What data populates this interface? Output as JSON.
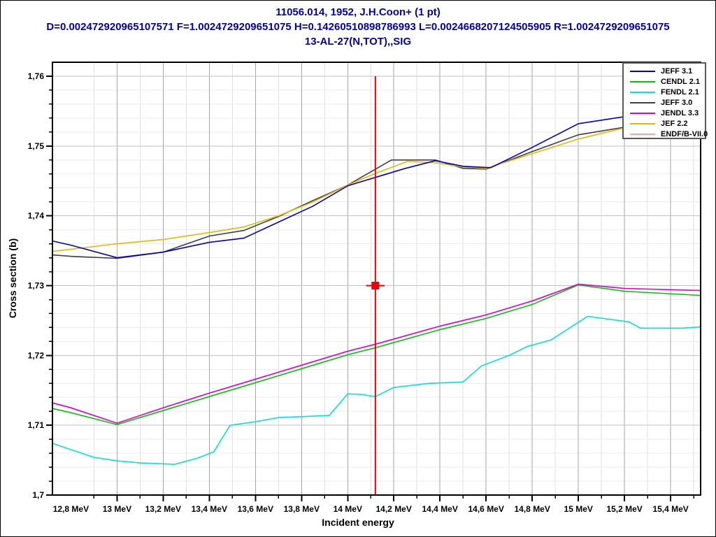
{
  "header": {
    "line1": "11056.014, 1952, J.H.Coon+ (1 pt)",
    "line2": "D=0.002472920965107571 F=1.0024729209651075 H=0.14260510898786993 L=0.0024668207124505905 R=1.0024729209651075",
    "line3": "13-AL-27(N,TOT),,SIG",
    "text_color": "#0000bb"
  },
  "colors": {
    "background": "#ffffff",
    "plot_border": "#000000",
    "grid_major_vertical": "#a6a6a6",
    "grid_major_horizontal": "#c2c2c2",
    "grid_minor_vertical": "#e2e2e2",
    "grid_minor_horizontal": "#ebebeb",
    "experimental": "#ee0000"
  },
  "chart_data": {
    "type": "line",
    "title": "13-AL-27(N,TOT),,SIG",
    "xlabel": "Incident energy",
    "ylabel": "Cross section (b)",
    "x_unit": "MeV",
    "y_unit": "b",
    "xlim": [
      12.72,
      15.53
    ],
    "ylim": [
      1.7,
      1.762
    ],
    "grid": "on",
    "legend_position": "top-right",
    "x_major_ticks": [
      {
        "value": 12.8,
        "label": "12,8 MeV"
      },
      {
        "value": 13.0,
        "label": "13 MeV"
      },
      {
        "value": 13.2,
        "label": "13,2 MeV"
      },
      {
        "value": 13.4,
        "label": "13,4 MeV"
      },
      {
        "value": 13.6,
        "label": "13,6 MeV"
      },
      {
        "value": 13.8,
        "label": "13,8 MeV"
      },
      {
        "value": 14.0,
        "label": "14 MeV"
      },
      {
        "value": 14.2,
        "label": "14,2 MeV"
      },
      {
        "value": 14.4,
        "label": "14,4 MeV"
      },
      {
        "value": 14.6,
        "label": "14,6 MeV"
      },
      {
        "value": 14.8,
        "label": "14,8 MeV"
      },
      {
        "value": 15.0,
        "label": "15 MeV"
      },
      {
        "value": 15.2,
        "label": "15,2 MeV"
      },
      {
        "value": 15.4,
        "label": "15,4 MeV"
      }
    ],
    "x_minor_step": 0.1,
    "y_major_ticks": [
      {
        "value": 1.76,
        "label": "1,76"
      },
      {
        "value": 1.75,
        "label": "1,75"
      },
      {
        "value": 1.74,
        "label": "1,74"
      },
      {
        "value": 1.73,
        "label": "1,73"
      },
      {
        "value": 1.72,
        "label": "1,72"
      },
      {
        "value": 1.71,
        "label": "1,71"
      },
      {
        "value": 1.7,
        "label": "1,7"
      }
    ],
    "y_minor_step": 0.002,
    "series": [
      {
        "name": "JEFF 3.1",
        "color": "#0000cc",
        "points": [
          [
            12.72,
            1.7364
          ],
          [
            12.8,
            1.7358
          ],
          [
            13.0,
            1.734
          ],
          [
            13.2,
            1.7348
          ],
          [
            13.4,
            1.7362
          ],
          [
            13.55,
            1.7368
          ],
          [
            13.7,
            1.7391
          ],
          [
            13.85,
            1.7414
          ],
          [
            14.0,
            1.7443
          ],
          [
            14.12,
            1.7455
          ],
          [
            14.25,
            1.7468
          ],
          [
            14.38,
            1.7479
          ],
          [
            14.5,
            1.7471
          ],
          [
            14.62,
            1.7469
          ],
          [
            14.8,
            1.7498
          ],
          [
            15.0,
            1.7532
          ],
          [
            15.2,
            1.7542
          ],
          [
            15.53,
            1.7556
          ]
        ]
      },
      {
        "name": "CENDL 2.1",
        "color": "#00c800",
        "points": [
          [
            12.72,
            1.7124
          ],
          [
            12.8,
            1.7118
          ],
          [
            13.0,
            1.7101
          ],
          [
            13.2,
            1.7121
          ],
          [
            13.4,
            1.7141
          ],
          [
            13.6,
            1.7161
          ],
          [
            13.8,
            1.7181
          ],
          [
            14.0,
            1.7201
          ],
          [
            14.12,
            1.7211
          ],
          [
            14.4,
            1.7237
          ],
          [
            14.6,
            1.7253
          ],
          [
            14.8,
            1.7273
          ],
          [
            15.0,
            1.7301
          ],
          [
            15.2,
            1.7292
          ],
          [
            15.53,
            1.7286
          ]
        ]
      },
      {
        "name": "FENDL 2.1",
        "color": "#00e2e2",
        "points": [
          [
            12.72,
            1.7074
          ],
          [
            12.9,
            1.7054
          ],
          [
            13.0,
            1.7049
          ],
          [
            13.1,
            1.7046
          ],
          [
            13.25,
            1.7044
          ],
          [
            13.35,
            1.7053
          ],
          [
            13.42,
            1.7062
          ],
          [
            13.49,
            1.71
          ],
          [
            13.6,
            1.7105
          ],
          [
            13.7,
            1.7111
          ],
          [
            13.92,
            1.7114
          ],
          [
            14.0,
            1.7145
          ],
          [
            14.06,
            1.7144
          ],
          [
            14.12,
            1.7141
          ],
          [
            14.2,
            1.7154
          ],
          [
            14.35,
            1.716
          ],
          [
            14.5,
            1.7162
          ],
          [
            14.58,
            1.7185
          ],
          [
            14.7,
            1.72
          ],
          [
            14.78,
            1.7213
          ],
          [
            14.88,
            1.7222
          ],
          [
            15.04,
            1.7256
          ],
          [
            15.22,
            1.7248
          ],
          [
            15.27,
            1.7239
          ],
          [
            15.45,
            1.7239
          ],
          [
            15.53,
            1.7241
          ]
        ]
      },
      {
        "name": "JEFF 3.0",
        "color": "#404040",
        "points": [
          [
            12.72,
            1.7344
          ],
          [
            12.8,
            1.7342
          ],
          [
            13.0,
            1.7339
          ],
          [
            13.2,
            1.7348
          ],
          [
            13.4,
            1.7371
          ],
          [
            13.55,
            1.7379
          ],
          [
            13.7,
            1.7399
          ],
          [
            13.85,
            1.7422
          ],
          [
            14.0,
            1.7444
          ],
          [
            14.19,
            1.748
          ],
          [
            14.38,
            1.748
          ],
          [
            14.5,
            1.7468
          ],
          [
            14.6,
            1.7467
          ],
          [
            14.8,
            1.7492
          ],
          [
            15.0,
            1.7516
          ],
          [
            15.2,
            1.7527
          ],
          [
            15.53,
            1.7544
          ]
        ]
      },
      {
        "name": "JENDL 3.3",
        "color": "#dd00dd",
        "points": [
          [
            12.72,
            1.7132
          ],
          [
            12.8,
            1.7125
          ],
          [
            13.0,
            1.7103
          ],
          [
            13.2,
            1.7125
          ],
          [
            13.4,
            1.7146
          ],
          [
            13.6,
            1.7166
          ],
          [
            13.8,
            1.7186
          ],
          [
            14.0,
            1.7206
          ],
          [
            14.12,
            1.7216
          ],
          [
            14.4,
            1.7242
          ],
          [
            14.6,
            1.7258
          ],
          [
            14.8,
            1.7278
          ],
          [
            15.0,
            1.7302
          ],
          [
            15.2,
            1.7296
          ],
          [
            15.53,
            1.7293
          ]
        ]
      },
      {
        "name": "JEF 2.2",
        "color": "#eeb400",
        "points": [
          [
            12.72,
            1.7349
          ],
          [
            12.8,
            1.7352
          ],
          [
            13.0,
            1.736
          ],
          [
            13.2,
            1.7366
          ],
          [
            13.4,
            1.7376
          ],
          [
            13.55,
            1.7384
          ],
          [
            13.7,
            1.74
          ],
          [
            13.85,
            1.742
          ],
          [
            14.0,
            1.7444
          ],
          [
            14.13,
            1.7462
          ],
          [
            14.26,
            1.7478
          ],
          [
            14.38,
            1.7476
          ],
          [
            14.5,
            1.747
          ],
          [
            14.6,
            1.7468
          ],
          [
            14.8,
            1.7489
          ],
          [
            15.0,
            1.751
          ],
          [
            15.2,
            1.7526
          ],
          [
            15.53,
            1.7548
          ]
        ]
      },
      {
        "name": "ENDF/B-VII.0",
        "color": "#ff9e9e",
        "points": [
          [
            12.72,
            1.7132
          ],
          [
            12.8,
            1.7125
          ],
          [
            13.0,
            1.7103
          ],
          [
            13.2,
            1.7125
          ],
          [
            13.4,
            1.7146
          ],
          [
            13.6,
            1.7166
          ],
          [
            13.8,
            1.7186
          ],
          [
            14.0,
            1.7206
          ],
          [
            14.12,
            1.7216
          ],
          [
            14.4,
            1.7242
          ],
          [
            14.6,
            1.7258
          ],
          [
            14.8,
            1.7278
          ],
          [
            15.0,
            1.7302
          ],
          [
            15.2,
            1.7296
          ],
          [
            15.53,
            1.7293
          ]
        ]
      }
    ],
    "draw_order": [
      6,
      2,
      1,
      4,
      3,
      5,
      0
    ],
    "experimental_point": {
      "label": "J.H.Coon+ (1952)",
      "energy": 14.12,
      "value": 1.73,
      "xerr": 0.04,
      "yerr": 0.03,
      "color": "#ee0000"
    }
  }
}
